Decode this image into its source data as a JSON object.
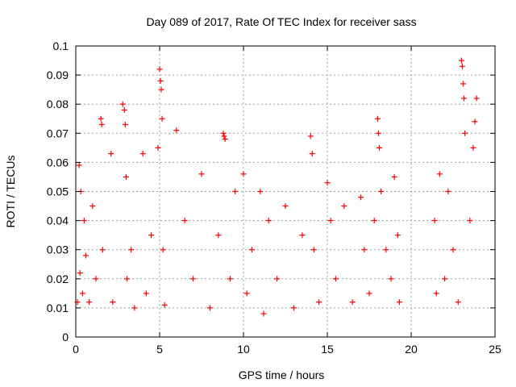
{
  "chart_data": {
    "type": "scatter",
    "title": "Day 089 of 2017, Rate Of TEC Index for receiver sass",
    "xlabel": "GPS time / hours",
    "ylabel": "ROTI / TECUs",
    "xlim": [
      0,
      25
    ],
    "ylim": [
      0,
      0.1
    ],
    "x_ticks": [
      "0",
      "5",
      "10",
      "15",
      "20",
      "25"
    ],
    "y_ticks": [
      "0",
      "0.01",
      "0.02",
      "0.03",
      "0.04",
      "0.05",
      "0.06",
      "0.07",
      "0.08",
      "0.09",
      "0.1"
    ],
    "grid": true,
    "marker": "plus",
    "color": "#ff0000",
    "series": [
      {
        "x": [
          0.1,
          0.2,
          0.25,
          0.3,
          0.4,
          0.5,
          0.6,
          0.8,
          1.0,
          1.2,
          1.5,
          1.55,
          1.6,
          2.1,
          2.2,
          2.8,
          2.9,
          2.95,
          3.0,
          3.05,
          3.3,
          3.5,
          4.0,
          4.2,
          4.5,
          4.9,
          5.0,
          5.05,
          5.1,
          5.15,
          5.2,
          5.3,
          6.0,
          6.5,
          7.0,
          7.5,
          8.0,
          8.5,
          8.8,
          8.85,
          8.9,
          9.2,
          9.5,
          10.0,
          10.2,
          10.5,
          11.0,
          11.2,
          11.5,
          12.0,
          12.5,
          13.0,
          13.5,
          14.0,
          14.1,
          14.2,
          14.5,
          15.0,
          15.2,
          15.5,
          16.0,
          16.5,
          17.0,
          17.2,
          17.5,
          17.8,
          18.0,
          18.05,
          18.1,
          18.2,
          18.5,
          18.8,
          19.0,
          19.2,
          19.3,
          21.4,
          21.5,
          21.7,
          22.0,
          22.2,
          22.5,
          22.8,
          23.0,
          23.05,
          23.1,
          23.15,
          23.2,
          23.5,
          23.7,
          23.8,
          23.9
        ],
        "y": [
          0.012,
          0.059,
          0.022,
          0.05,
          0.015,
          0.04,
          0.028,
          0.012,
          0.045,
          0.02,
          0.075,
          0.073,
          0.03,
          0.063,
          0.012,
          0.08,
          0.078,
          0.073,
          0.055,
          0.02,
          0.03,
          0.01,
          0.063,
          0.015,
          0.035,
          0.065,
          0.092,
          0.088,
          0.085,
          0.075,
          0.03,
          0.011,
          0.071,
          0.04,
          0.02,
          0.056,
          0.01,
          0.035,
          0.07,
          0.069,
          0.068,
          0.02,
          0.05,
          0.056,
          0.015,
          0.03,
          0.05,
          0.008,
          0.04,
          0.02,
          0.045,
          0.01,
          0.035,
          0.069,
          0.063,
          0.03,
          0.012,
          0.053,
          0.04,
          0.02,
          0.045,
          0.012,
          0.048,
          0.03,
          0.015,
          0.04,
          0.075,
          0.07,
          0.065,
          0.05,
          0.03,
          0.02,
          0.055,
          0.035,
          0.012,
          0.04,
          0.015,
          0.056,
          0.02,
          0.05,
          0.03,
          0.012,
          0.095,
          0.093,
          0.087,
          0.082,
          0.07,
          0.04,
          0.065,
          0.074,
          0.082
        ]
      }
    ]
  }
}
